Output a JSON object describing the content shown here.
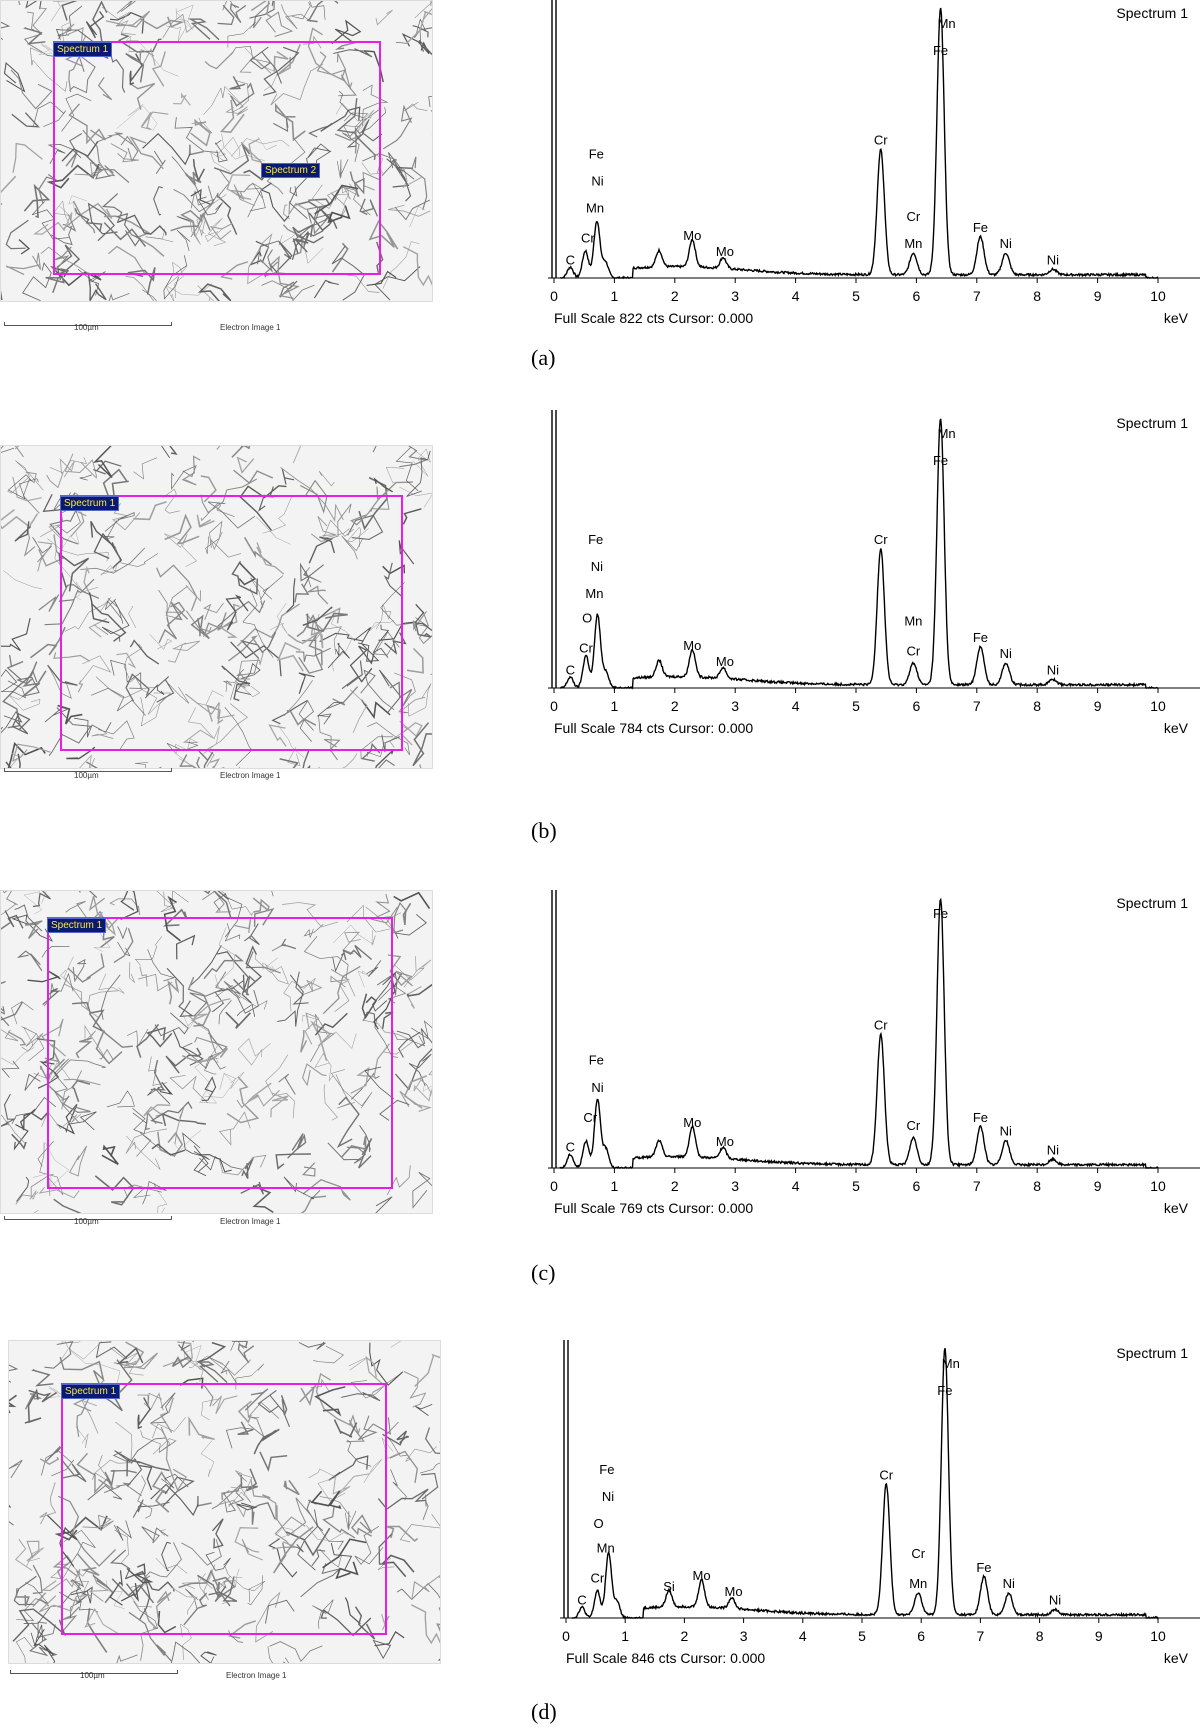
{
  "panels": [
    {
      "caption": "(a)",
      "image": {
        "scale_label": "100µm",
        "image_label": "Electron Image 1",
        "regions": [
          {
            "label": "Spectrum 1"
          },
          {
            "label": "Spectrum 2"
          }
        ]
      },
      "spectrum": {
        "title": "Spectrum 1",
        "footer": "Full Scale 822 cts Cursor: 0.000",
        "unit": "keV"
      }
    },
    {
      "caption": "(b)",
      "image": {
        "scale_label": "100µm",
        "image_label": "Electron Image 1",
        "regions": [
          {
            "label": "Spectrum 1"
          }
        ]
      },
      "spectrum": {
        "title": "Spectrum 1",
        "footer": "Full Scale 784 cts Cursor: 0.000",
        "unit": "keV"
      }
    },
    {
      "caption": "(c)",
      "image": {
        "scale_label": "100µm",
        "image_label": "Electron Image 1",
        "regions": [
          {
            "label": "Spectrum 1"
          }
        ]
      },
      "spectrum": {
        "title": "Spectrum 1",
        "footer": "Full Scale 769 cts Cursor: 0.000",
        "unit": "keV"
      }
    },
    {
      "caption": "(d)",
      "image": {
        "scale_label": "100µm",
        "image_label": "Electron Image 1",
        "regions": [
          {
            "label": "Spectrum 1"
          }
        ]
      },
      "spectrum": {
        "title": "Spectrum 1",
        "footer": "Full Scale 846 cts Cursor: 0.000",
        "unit": "keV"
      }
    }
  ],
  "chart_data": [
    {
      "type": "line",
      "title": "Spectrum 1",
      "xlabel": "keV",
      "xlim": [
        0,
        10
      ],
      "x_ticks": [
        0,
        1,
        2,
        3,
        4,
        5,
        6,
        7,
        8,
        9,
        10
      ],
      "full_scale_cts": 822,
      "peaks": [
        {
          "x": 0.27,
          "y": 0.04
        },
        {
          "x": 0.52,
          "y": 0.1
        },
        {
          "x": 0.71,
          "y": 0.21
        },
        {
          "x": 0.85,
          "y": 0.06
        },
        {
          "x": 1.74,
          "y": 0.06
        },
        {
          "x": 2.29,
          "y": 0.1
        },
        {
          "x": 2.8,
          "y": 0.04
        },
        {
          "x": 5.41,
          "y": 0.46
        },
        {
          "x": 5.95,
          "y": 0.08
        },
        {
          "x": 6.4,
          "y": 0.98
        },
        {
          "x": 7.06,
          "y": 0.14
        },
        {
          "x": 7.48,
          "y": 0.08
        },
        {
          "x": 8.26,
          "y": 0.02
        }
      ],
      "annotations": [
        {
          "text": "C",
          "x": 0.27,
          "y": 0.05
        },
        {
          "text": "Cr",
          "x": 0.56,
          "y": 0.13
        },
        {
          "text": "Mn",
          "x": 0.68,
          "y": 0.24
        },
        {
          "text": "Ni",
          "x": 0.72,
          "y": 0.34
        },
        {
          "text": "Fe",
          "x": 0.7,
          "y": 0.44
        },
        {
          "text": "Mo",
          "x": 2.29,
          "y": 0.14
        },
        {
          "text": "Mo",
          "x": 2.83,
          "y": 0.08
        },
        {
          "text": "Cr",
          "x": 5.41,
          "y": 0.49
        },
        {
          "text": "Cr",
          "x": 5.95,
          "y": 0.21
        },
        {
          "text": "Mn",
          "x": 5.95,
          "y": 0.11
        },
        {
          "text": "Fe",
          "x": 6.4,
          "y": 0.82
        },
        {
          "text": "Mn",
          "x": 6.5,
          "y": 0.92
        },
        {
          "text": "Fe",
          "x": 7.06,
          "y": 0.17
        },
        {
          "text": "Ni",
          "x": 7.48,
          "y": 0.11
        },
        {
          "text": "Ni",
          "x": 8.26,
          "y": 0.05
        }
      ]
    },
    {
      "type": "line",
      "title": "Spectrum 1",
      "xlabel": "keV",
      "xlim": [
        0,
        10
      ],
      "x_ticks": [
        0,
        1,
        2,
        3,
        4,
        5,
        6,
        7,
        8,
        9,
        10
      ],
      "full_scale_cts": 784,
      "peaks": [
        {
          "x": 0.27,
          "y": 0.04
        },
        {
          "x": 0.53,
          "y": 0.12
        },
        {
          "x": 0.72,
          "y": 0.27
        },
        {
          "x": 0.86,
          "y": 0.06
        },
        {
          "x": 1.74,
          "y": 0.06
        },
        {
          "x": 2.29,
          "y": 0.1
        },
        {
          "x": 2.8,
          "y": 0.04
        },
        {
          "x": 5.41,
          "y": 0.5
        },
        {
          "x": 5.95,
          "y": 0.08
        },
        {
          "x": 6.4,
          "y": 0.98
        },
        {
          "x": 7.06,
          "y": 0.14
        },
        {
          "x": 7.48,
          "y": 0.08
        },
        {
          "x": 8.26,
          "y": 0.02
        }
      ],
      "annotations": [
        {
          "text": "C",
          "x": 0.27,
          "y": 0.05
        },
        {
          "text": "Cr",
          "x": 0.53,
          "y": 0.13
        },
        {
          "text": "O",
          "x": 0.55,
          "y": 0.24
        },
        {
          "text": "Mn",
          "x": 0.67,
          "y": 0.33
        },
        {
          "text": "Ni",
          "x": 0.71,
          "y": 0.43
        },
        {
          "text": "Fe",
          "x": 0.69,
          "y": 0.53
        },
        {
          "text": "Mo",
          "x": 2.29,
          "y": 0.14
        },
        {
          "text": "Mo",
          "x": 2.83,
          "y": 0.08
        },
        {
          "text": "Cr",
          "x": 5.41,
          "y": 0.53
        },
        {
          "text": "Mn",
          "x": 5.95,
          "y": 0.23
        },
        {
          "text": "Cr",
          "x": 5.95,
          "y": 0.12
        },
        {
          "text": "Fe",
          "x": 6.4,
          "y": 0.82
        },
        {
          "text": "Mn",
          "x": 6.5,
          "y": 0.92
        },
        {
          "text": "Fe",
          "x": 7.06,
          "y": 0.17
        },
        {
          "text": "Ni",
          "x": 7.48,
          "y": 0.11
        },
        {
          "text": "Ni",
          "x": 8.26,
          "y": 0.05
        }
      ]
    },
    {
      "type": "line",
      "title": "Spectrum 1",
      "xlabel": "keV",
      "xlim": [
        0,
        10
      ],
      "x_ticks": [
        0,
        1,
        2,
        3,
        4,
        5,
        6,
        7,
        8,
        9,
        10
      ],
      "full_scale_cts": 769,
      "peaks": [
        {
          "x": 0.27,
          "y": 0.05
        },
        {
          "x": 0.53,
          "y": 0.1
        },
        {
          "x": 0.72,
          "y": 0.25
        },
        {
          "x": 0.86,
          "y": 0.07
        },
        {
          "x": 1.74,
          "y": 0.06
        },
        {
          "x": 2.29,
          "y": 0.11
        },
        {
          "x": 2.8,
          "y": 0.04
        },
        {
          "x": 5.41,
          "y": 0.48
        },
        {
          "x": 5.95,
          "y": 0.1
        },
        {
          "x": 6.4,
          "y": 0.98
        },
        {
          "x": 7.06,
          "y": 0.14
        },
        {
          "x": 7.48,
          "y": 0.09
        },
        {
          "x": 8.26,
          "y": 0.02
        }
      ],
      "annotations": [
        {
          "text": "C",
          "x": 0.27,
          "y": 0.06
        },
        {
          "text": "Cr",
          "x": 0.6,
          "y": 0.17
        },
        {
          "text": "Ni",
          "x": 0.72,
          "y": 0.28
        },
        {
          "text": "Fe",
          "x": 0.7,
          "y": 0.38
        },
        {
          "text": "Mo",
          "x": 2.29,
          "y": 0.15
        },
        {
          "text": "Mo",
          "x": 2.83,
          "y": 0.08
        },
        {
          "text": "Cr",
          "x": 5.41,
          "y": 0.51
        },
        {
          "text": "Cr",
          "x": 5.95,
          "y": 0.14
        },
        {
          "text": "Fe",
          "x": 6.4,
          "y": 0.92
        },
        {
          "text": "Fe",
          "x": 7.06,
          "y": 0.17
        },
        {
          "text": "Ni",
          "x": 7.48,
          "y": 0.12
        },
        {
          "text": "Ni",
          "x": 8.26,
          "y": 0.05
        }
      ]
    },
    {
      "type": "line",
      "title": "Spectrum 1",
      "xlabel": "keV",
      "xlim": [
        0,
        10
      ],
      "x_ticks": [
        0,
        1,
        2,
        3,
        4,
        5,
        6,
        7,
        8,
        9,
        10
      ],
      "full_scale_cts": 846,
      "peaks": [
        {
          "x": 0.27,
          "y": 0.04
        },
        {
          "x": 0.53,
          "y": 0.1
        },
        {
          "x": 0.72,
          "y": 0.24
        },
        {
          "x": 0.86,
          "y": 0.06
        },
        {
          "x": 1.74,
          "y": 0.06
        },
        {
          "x": 2.29,
          "y": 0.1
        },
        {
          "x": 2.8,
          "y": 0.04
        },
        {
          "x": 5.41,
          "y": 0.48
        },
        {
          "x": 5.95,
          "y": 0.08
        },
        {
          "x": 6.4,
          "y": 0.98
        },
        {
          "x": 7.06,
          "y": 0.14
        },
        {
          "x": 7.48,
          "y": 0.08
        },
        {
          "x": 8.26,
          "y": 0.02
        }
      ],
      "annotations": [
        {
          "text": "C",
          "x": 0.27,
          "y": 0.05
        },
        {
          "text": "Cr",
          "x": 0.53,
          "y": 0.13
        },
        {
          "text": "Mn",
          "x": 0.67,
          "y": 0.24
        },
        {
          "text": "O",
          "x": 0.55,
          "y": 0.33
        },
        {
          "text": "Ni",
          "x": 0.71,
          "y": 0.43
        },
        {
          "text": "Fe",
          "x": 0.69,
          "y": 0.53
        },
        {
          "text": "Si",
          "x": 1.74,
          "y": 0.1
        },
        {
          "text": "Mo",
          "x": 2.29,
          "y": 0.14
        },
        {
          "text": "Mo",
          "x": 2.83,
          "y": 0.08
        },
        {
          "text": "Cr",
          "x": 5.41,
          "y": 0.51
        },
        {
          "text": "Cr",
          "x": 5.95,
          "y": 0.22
        },
        {
          "text": "Mn",
          "x": 5.95,
          "y": 0.11
        },
        {
          "text": "Fe",
          "x": 6.4,
          "y": 0.82
        },
        {
          "text": "Mn",
          "x": 6.5,
          "y": 0.92
        },
        {
          "text": "Fe",
          "x": 7.06,
          "y": 0.17
        },
        {
          "text": "Ni",
          "x": 7.48,
          "y": 0.11
        },
        {
          "text": "Ni",
          "x": 8.26,
          "y": 0.05
        }
      ]
    }
  ]
}
